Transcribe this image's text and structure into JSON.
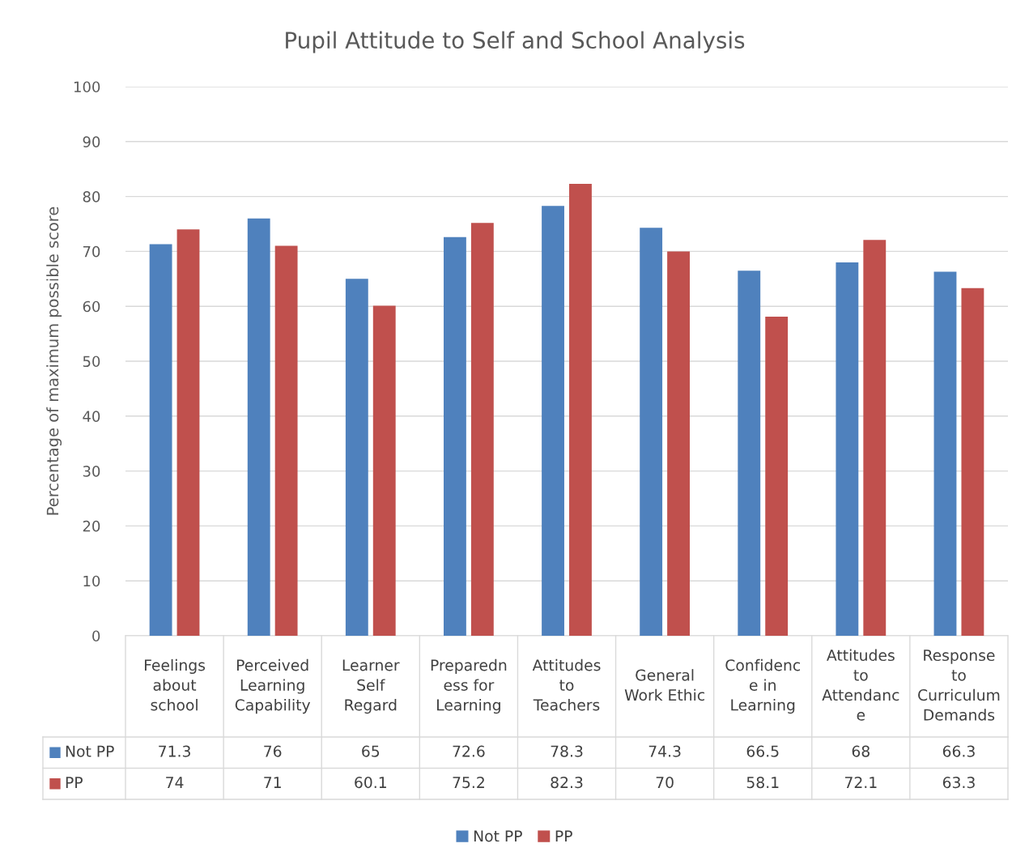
{
  "chart_data": {
    "type": "bar",
    "title": "Pupil Attitude to Self and School Analysis",
    "ylabel": "Percentage of maximum possible score",
    "categories": [
      "Feelings\nabout\nschool",
      "Perceived\nLearning\nCapability",
      "Learner\nSelf\nRegard",
      "Preparedn\ness for\nLearning",
      "Attitudes\nto\nTeachers",
      "General\nWork Ethic",
      "Confidenc\ne in\nLearning",
      "Attitudes\nto\nAttendanc\ne",
      "Response\nto\nCurriculum\nDemands"
    ],
    "series": [
      {
        "name": "Not PP",
        "color": "#4f81bd",
        "values": [
          71.3,
          76,
          65,
          72.6,
          78.3,
          74.3,
          66.5,
          68,
          66.3
        ]
      },
      {
        "name": "PP",
        "color": "#c0504d",
        "values": [
          74,
          71,
          60.1,
          75.2,
          82.3,
          70,
          58.1,
          72.1,
          63.3
        ]
      }
    ],
    "ylim": [
      0,
      100
    ],
    "yticks": [
      0,
      10,
      20,
      30,
      40,
      50,
      60,
      70,
      80,
      90,
      100
    ],
    "grid": "y",
    "legend": "bottom",
    "data_labels": true
  }
}
